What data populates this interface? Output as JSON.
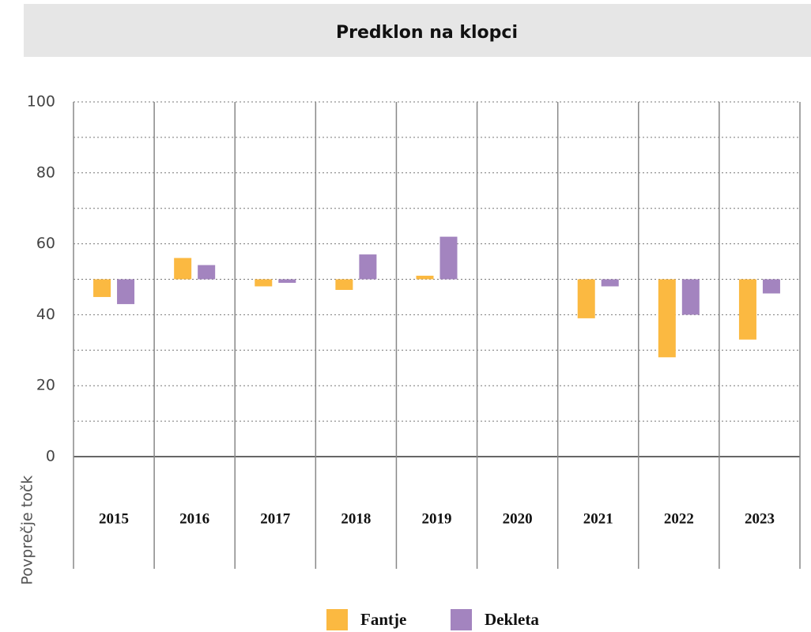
{
  "chart_data": {
    "type": "bar",
    "title": "Predklon na klopci",
    "y_label": "Povprečje točk",
    "categories": [
      "2015",
      "2016",
      "2017",
      "2018",
      "2019",
      "2020",
      "2021",
      "2022",
      "2023"
    ],
    "series": [
      {
        "name": "Fantje",
        "color": "#fbb941",
        "values": [
          45,
          56,
          48,
          47,
          51,
          null,
          39,
          28,
          33
        ]
      },
      {
        "name": "Dekleta",
        "color": "#a384bf",
        "values": [
          43,
          54,
          49,
          57,
          62,
          null,
          48,
          40,
          46
        ]
      }
    ],
    "ylim": [
      0,
      100
    ],
    "yticks": [
      0,
      20,
      40,
      60,
      80,
      100
    ],
    "grid": true
  }
}
